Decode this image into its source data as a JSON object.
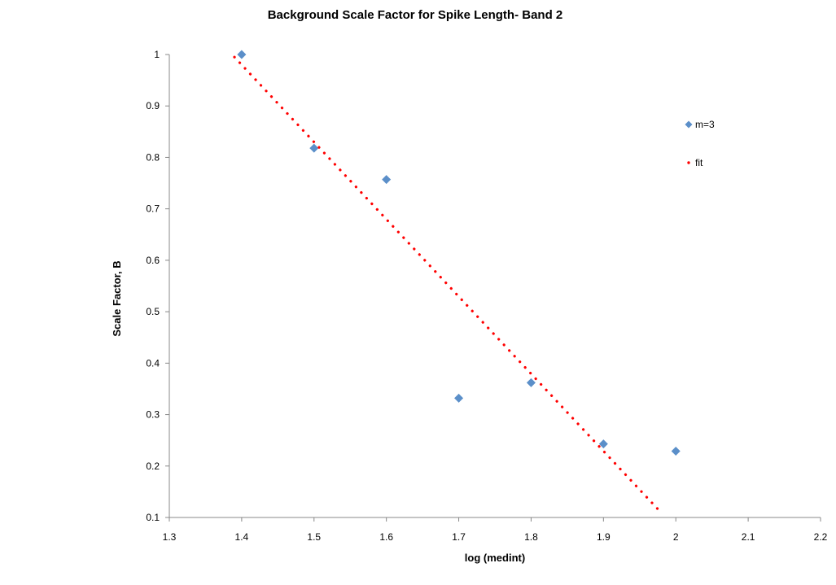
{
  "chart_data": {
    "type": "scatter",
    "title": "Background Scale Factor for Spike Length- Band 2",
    "xlabel": "log (medint)",
    "ylabel": "Scale Factor, B",
    "xlim": [
      1.3,
      2.2
    ],
    "ylim": [
      0.1,
      1
    ],
    "x_ticks": [
      "1.3",
      "1.4",
      "1.5",
      "1.6",
      "1.7",
      "1.8",
      "1.9",
      "2",
      "2.1",
      "2.2"
    ],
    "y_ticks": [
      "0.1",
      "0.2",
      "0.3",
      "0.4",
      "0.5",
      "0.6",
      "0.7",
      "0.8",
      "0.9",
      "1"
    ],
    "grid": false,
    "legend_position": "right",
    "series": [
      {
        "name": "m=3",
        "kind": "markers",
        "marker": "diamond",
        "color": "#5b8fc9",
        "x": [
          1.4,
          1.5,
          1.6,
          1.7,
          1.8,
          1.9,
          2.0
        ],
        "y": [
          1.0,
          0.818,
          0.757,
          0.332,
          0.362,
          0.243,
          0.229
        ]
      },
      {
        "name": "fit",
        "kind": "dotted-line",
        "color": "#ff0000",
        "x": [
          1.39,
          1.98
        ],
        "y": [
          0.995,
          0.109
        ]
      }
    ]
  }
}
